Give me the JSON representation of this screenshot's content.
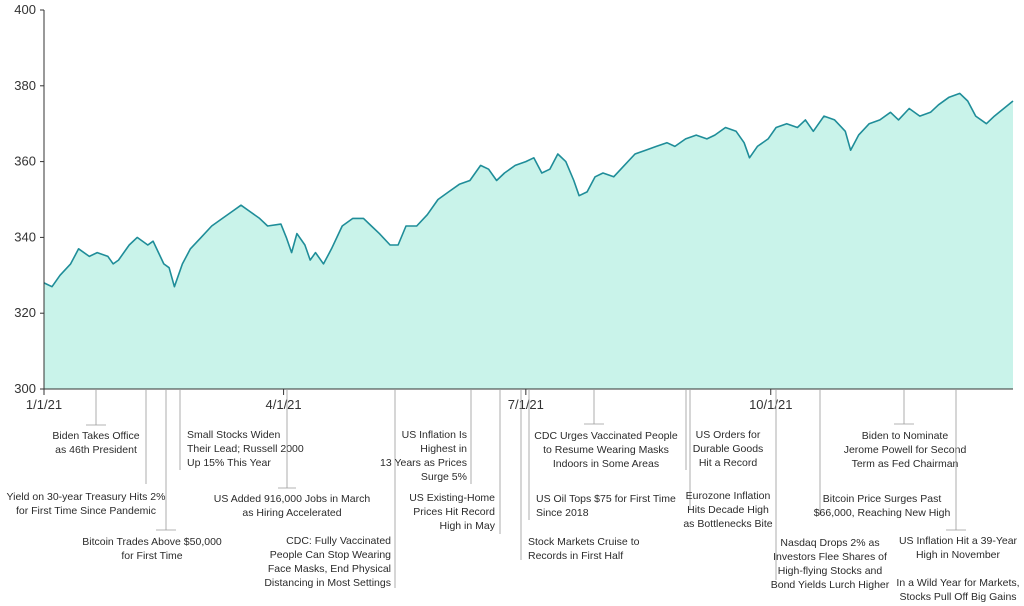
{
  "chart_data": {
    "type": "area",
    "title": "",
    "xlabel": "",
    "ylabel": "",
    "ylim": [
      300,
      400
    ],
    "yticks": [
      300,
      320,
      340,
      360,
      380,
      400
    ],
    "xlim": [
      "2021-01-01",
      "2021-12-31"
    ],
    "xticks": [
      {
        "date": "2021-01-01",
        "label": "1/1/21"
      },
      {
        "date": "2021-04-01",
        "label": "4/1/21"
      },
      {
        "date": "2021-07-01",
        "label": "7/1/21"
      },
      {
        "date": "2021-10-01",
        "label": "10/1/21"
      }
    ],
    "grid": false,
    "colors": {
      "line": "#1f8d99",
      "fill": "#c9f3ea",
      "axis": "#333333",
      "leader": "#9a9a9a"
    },
    "series": [
      {
        "points": [
          [
            "2021-01-01",
            328
          ],
          [
            "2021-01-04",
            327
          ],
          [
            "2021-01-07",
            330
          ],
          [
            "2021-01-11",
            333
          ],
          [
            "2021-01-14",
            337
          ],
          [
            "2021-01-18",
            335
          ],
          [
            "2021-01-21",
            336
          ],
          [
            "2021-01-25",
            335
          ],
          [
            "2021-01-27",
            333
          ],
          [
            "2021-01-29",
            334
          ],
          [
            "2021-02-02",
            338
          ],
          [
            "2021-02-05",
            340
          ],
          [
            "2021-02-09",
            338
          ],
          [
            "2021-02-11",
            339
          ],
          [
            "2021-02-13",
            336
          ],
          [
            "2021-02-15",
            333
          ],
          [
            "2021-02-17",
            332
          ],
          [
            "2021-02-19",
            327
          ],
          [
            "2021-02-22",
            333
          ],
          [
            "2021-02-25",
            337
          ],
          [
            "2021-03-01",
            340
          ],
          [
            "2021-03-05",
            343
          ],
          [
            "2021-03-09",
            345
          ],
          [
            "2021-03-13",
            347
          ],
          [
            "2021-03-16",
            348.5
          ],
          [
            "2021-03-19",
            347
          ],
          [
            "2021-03-23",
            345
          ],
          [
            "2021-03-26",
            343
          ],
          [
            "2021-03-31",
            343.5
          ],
          [
            "2021-04-02",
            340
          ],
          [
            "2021-04-04",
            336
          ],
          [
            "2021-04-06",
            341
          ],
          [
            "2021-04-09",
            338
          ],
          [
            "2021-04-11",
            334
          ],
          [
            "2021-04-13",
            336
          ],
          [
            "2021-04-16",
            333
          ],
          [
            "2021-04-19",
            337
          ],
          [
            "2021-04-23",
            343
          ],
          [
            "2021-04-27",
            345
          ],
          [
            "2021-05-01",
            345
          ],
          [
            "2021-05-04",
            343
          ],
          [
            "2021-05-07",
            341
          ],
          [
            "2021-05-11",
            338
          ],
          [
            "2021-05-14",
            338
          ],
          [
            "2021-05-17",
            343
          ],
          [
            "2021-05-21",
            343
          ],
          [
            "2021-05-25",
            346
          ],
          [
            "2021-05-29",
            350
          ],
          [
            "2021-06-02",
            352
          ],
          [
            "2021-06-06",
            354
          ],
          [
            "2021-06-10",
            355
          ],
          [
            "2021-06-14",
            359
          ],
          [
            "2021-06-17",
            358
          ],
          [
            "2021-06-20",
            355
          ],
          [
            "2021-06-23",
            357
          ],
          [
            "2021-06-27",
            359
          ],
          [
            "2021-07-01",
            360
          ],
          [
            "2021-07-04",
            361
          ],
          [
            "2021-07-07",
            357
          ],
          [
            "2021-07-10",
            358
          ],
          [
            "2021-07-13",
            362
          ],
          [
            "2021-07-16",
            360
          ],
          [
            "2021-07-19",
            355
          ],
          [
            "2021-07-21",
            351
          ],
          [
            "2021-07-24",
            352
          ],
          [
            "2021-07-27",
            356
          ],
          [
            "2021-07-30",
            357
          ],
          [
            "2021-08-03",
            356
          ],
          [
            "2021-08-07",
            359
          ],
          [
            "2021-08-11",
            362
          ],
          [
            "2021-08-15",
            363
          ],
          [
            "2021-08-19",
            364
          ],
          [
            "2021-08-23",
            365
          ],
          [
            "2021-08-26",
            364
          ],
          [
            "2021-08-30",
            366
          ],
          [
            "2021-09-03",
            367
          ],
          [
            "2021-09-07",
            366
          ],
          [
            "2021-09-10",
            367
          ],
          [
            "2021-09-14",
            369
          ],
          [
            "2021-09-18",
            368
          ],
          [
            "2021-09-21",
            365
          ],
          [
            "2021-09-23",
            361
          ],
          [
            "2021-09-26",
            364
          ],
          [
            "2021-09-30",
            366
          ],
          [
            "2021-10-03",
            369
          ],
          [
            "2021-10-07",
            370
          ],
          [
            "2021-10-11",
            369
          ],
          [
            "2021-10-14",
            371
          ],
          [
            "2021-10-17",
            368
          ],
          [
            "2021-10-21",
            372
          ],
          [
            "2021-10-25",
            371
          ],
          [
            "2021-10-29",
            368
          ],
          [
            "2021-10-31",
            363
          ],
          [
            "2021-11-03",
            367
          ],
          [
            "2021-11-07",
            370
          ],
          [
            "2021-11-11",
            371
          ],
          [
            "2021-11-15",
            373
          ],
          [
            "2021-11-18",
            371
          ],
          [
            "2021-11-22",
            374
          ],
          [
            "2021-11-26",
            372
          ],
          [
            "2021-11-30",
            373
          ],
          [
            "2021-12-03",
            375
          ],
          [
            "2021-12-07",
            377
          ],
          [
            "2021-12-11",
            378
          ],
          [
            "2021-12-14",
            376
          ],
          [
            "2021-12-17",
            372
          ],
          [
            "2021-12-21",
            370
          ],
          [
            "2021-12-24",
            372
          ],
          [
            "2021-12-31",
            376
          ]
        ]
      }
    ]
  },
  "annotations": [
    {
      "lines": [
        "Biden Takes Office",
        "as 46th President"
      ]
    },
    {
      "lines": [
        "Yield on 30-year Treasury Hits 2%",
        "for First Time Since Pandemic"
      ]
    },
    {
      "lines": [
        "Bitcoin Trades Above $50,000",
        "for First Time"
      ]
    },
    {
      "lines": [
        "Small Stocks Widen",
        "Their Lead; Russell 2000",
        "Up 15% This Year"
      ]
    },
    {
      "lines": [
        "US Added 916,000 Jobs in March",
        "as Hiring Accelerated"
      ]
    },
    {
      "lines": [
        "CDC: Fully Vaccinated",
        "People Can Stop Wearing",
        "Face Masks, End Physical",
        "Distancing in Most Settings"
      ]
    },
    {
      "lines": [
        "US Inflation Is",
        "Highest in",
        "13 Years as Prices",
        "Surge 5%"
      ]
    },
    {
      "lines": [
        "US Existing-Home",
        "Prices Hit Record",
        "High in May"
      ]
    },
    {
      "lines": [
        "CDC Urges Vaccinated People",
        "to Resume Wearing Masks",
        "Indoors in Some Areas"
      ]
    },
    {
      "lines": [
        "US Oil Tops $75 for First Time",
        "Since 2018"
      ]
    },
    {
      "lines": [
        "Stock Markets Cruise to",
        "Records in First Half"
      ]
    },
    {
      "lines": [
        "US Orders for",
        "Durable Goods",
        "Hit a Record"
      ]
    },
    {
      "lines": [
        "Eurozone Inflation",
        "Hits Decade High",
        "as Bottlenecks Bite"
      ]
    },
    {
      "lines": [
        "Nasdaq Drops 2% as",
        "Investors Flee Shares of",
        "High-flying Stocks and",
        "Bond Yields Lurch Higher"
      ]
    },
    {
      "lines": [
        "Biden to Nominate",
        "Jerome Powell for Second",
        "Term as Fed Chairman"
      ]
    },
    {
      "lines": [
        "Bitcoin Price Surges Past",
        "$66,000, Reaching New High"
      ]
    },
    {
      "lines": [
        "US Inflation Hit a 39-Year",
        "High in November"
      ]
    },
    {
      "lines": [
        "In a Wild Year for Markets,",
        "Stocks Pull Off Big Gains"
      ]
    }
  ]
}
